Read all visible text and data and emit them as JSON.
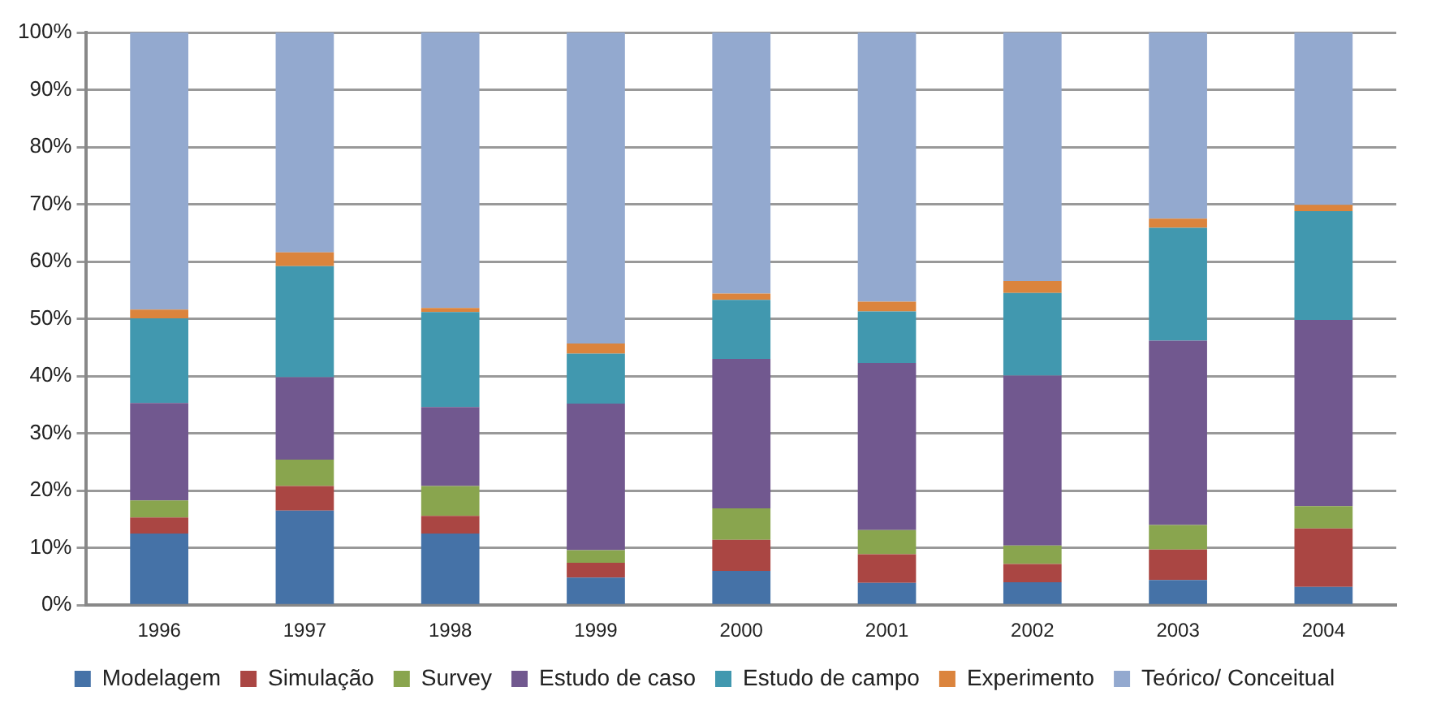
{
  "chart_data": {
    "type": "bar",
    "stacked": true,
    "categories": [
      "1996",
      "1997",
      "1998",
      "1999",
      "2000",
      "2001",
      "2002",
      "2003",
      "2004"
    ],
    "series": [
      {
        "name": "Modelagem",
        "color": "#4572a7",
        "values": [
          12.5,
          16.5,
          12.5,
          4.8,
          6.0,
          3.9,
          4.0,
          4.4,
          3.2
        ]
      },
      {
        "name": "Simulação",
        "color": "#aa4643",
        "values": [
          2.8,
          4.3,
          3.1,
          2.6,
          5.4,
          5.0,
          3.2,
          5.3,
          10.2
        ]
      },
      {
        "name": "Survey",
        "color": "#89a54e",
        "values": [
          3.0,
          4.6,
          5.2,
          2.2,
          5.5,
          4.2,
          3.2,
          4.3,
          3.9
        ]
      },
      {
        "name": "Estudo de caso",
        "color": "#71588f",
        "values": [
          17.0,
          14.4,
          13.8,
          25.6,
          26.1,
          29.2,
          29.7,
          32.2,
          32.5
        ]
      },
      {
        "name": "Estudo de campo",
        "color": "#4198af",
        "values": [
          14.8,
          19.4,
          16.6,
          8.7,
          10.3,
          9.0,
          14.4,
          19.7,
          19.0
        ]
      },
      {
        "name": "Experimento",
        "color": "#db843d",
        "values": [
          1.5,
          2.4,
          0.7,
          1.8,
          1.1,
          1.7,
          2.1,
          1.6,
          1.1
        ]
      },
      {
        "name": "Teórico/ Conceitual",
        "color": "#93a9cf",
        "values": [
          48.4,
          38.4,
          48.1,
          54.3,
          45.6,
          47.0,
          43.4,
          32.5,
          30.1
        ]
      }
    ],
    "ylim": [
      0,
      100
    ],
    "yticks": [
      {
        "value": 0,
        "label": "0%"
      },
      {
        "value": 10,
        "label": "10%"
      },
      {
        "value": 20,
        "label": "20%"
      },
      {
        "value": 30,
        "label": "30%"
      },
      {
        "value": 40,
        "label": "40%"
      },
      {
        "value": 50,
        "label": "50%"
      },
      {
        "value": 60,
        "label": "60%"
      },
      {
        "value": 70,
        "label": "70%"
      },
      {
        "value": 80,
        "label": "80%"
      },
      {
        "value": 90,
        "label": "90%"
      },
      {
        "value": 100,
        "label": "100%"
      }
    ],
    "grid": "y",
    "legend": "bottom"
  }
}
